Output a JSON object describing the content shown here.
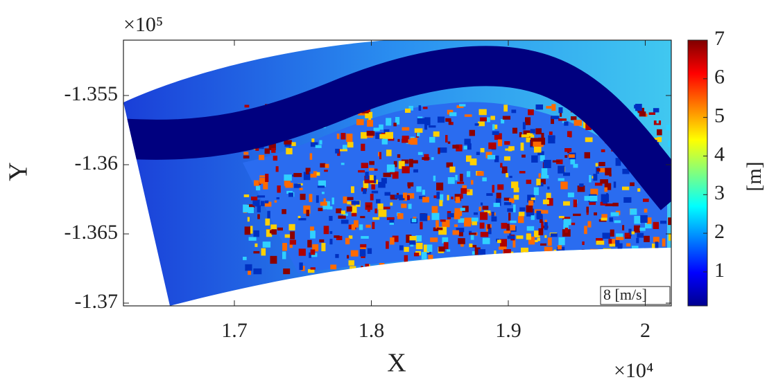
{
  "chart_data": {
    "type": "map",
    "xlabel": "X",
    "ylabel": "Y",
    "x_exponent": "×10⁴",
    "y_exponent": "×10⁵",
    "xlim": [
      1.619,
      2.019
    ],
    "xticks": [
      1.7,
      1.8,
      1.9,
      2
    ],
    "ylim": [
      -1.3702,
      -1.351
    ],
    "yticks": [
      -1.355,
      -1.36,
      -1.365,
      -1.37
    ],
    "colorbar": {
      "label": "[m]",
      "lim": [
        0.12,
        7
      ],
      "ticks": [
        1,
        2,
        3,
        4,
        5,
        6,
        7
      ],
      "colormap": "jet"
    },
    "annotation": "8 [m/s]"
  }
}
